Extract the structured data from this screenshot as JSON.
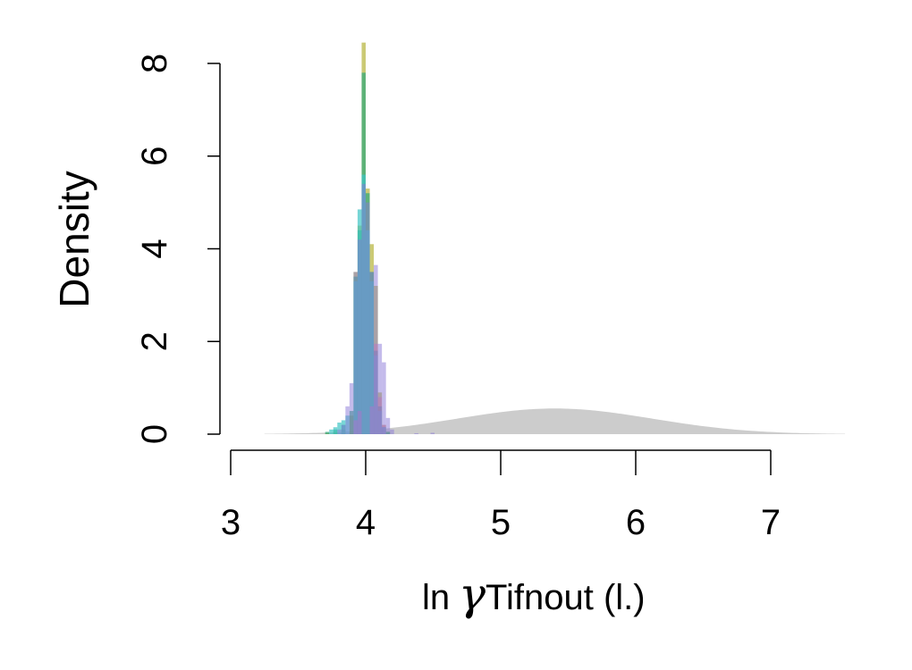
{
  "chart_data": {
    "type": "histogram",
    "title": "",
    "ylabel": "Density",
    "xlabel": {
      "prefix": "ln",
      "symbol": "γ",
      "subscript": "Tifnout (l.)"
    },
    "xlim": [
      3,
      7
    ],
    "ylim": [
      0,
      8
    ],
    "x_ticks": [
      3,
      4,
      5,
      6,
      7
    ],
    "y_ticks": [
      0,
      2,
      4,
      6,
      8
    ],
    "bin_width": 0.03,
    "prior": {
      "type": "area",
      "color": "#cccccc",
      "distribution": "normal",
      "mean": 5.4,
      "sd": 0.72,
      "x_range": [
        3.25,
        7.55
      ]
    },
    "series": [
      {
        "color": "#b5b33a",
        "opacity": 0.7,
        "bins": [
          [
            3.7,
            0.02
          ],
          [
            3.76,
            0.05
          ],
          [
            3.82,
            0.1
          ],
          [
            3.88,
            0.4
          ],
          [
            3.91,
            3.5
          ],
          [
            3.94,
            4.5
          ],
          [
            3.97,
            8.45
          ],
          [
            4.0,
            5.3
          ],
          [
            4.03,
            4.1
          ],
          [
            4.06,
            3.2
          ],
          [
            4.09,
            0.9
          ],
          [
            4.12,
            0.2
          ],
          [
            4.15,
            0.05
          ]
        ]
      },
      {
        "color": "#2ea879",
        "opacity": 0.7,
        "bins": [
          [
            3.7,
            0.05
          ],
          [
            3.76,
            0.1
          ],
          [
            3.82,
            0.2
          ],
          [
            3.88,
            0.5
          ],
          [
            3.91,
            3.4
          ],
          [
            3.94,
            4.4
          ],
          [
            3.97,
            7.8
          ],
          [
            4.0,
            5.2
          ],
          [
            4.03,
            3.5
          ],
          [
            4.06,
            1.8
          ],
          [
            4.09,
            0.6
          ],
          [
            4.12,
            0.15
          ],
          [
            4.15,
            0.05
          ]
        ]
      },
      {
        "color": "#3fc4c4",
        "opacity": 0.7,
        "bins": [
          [
            3.73,
            0.1
          ],
          [
            3.76,
            0.15
          ],
          [
            3.79,
            0.25
          ],
          [
            3.82,
            0.3
          ],
          [
            3.85,
            0.4
          ],
          [
            3.91,
            3.3
          ],
          [
            3.94,
            4.85
          ],
          [
            3.97,
            5.6
          ],
          [
            4.0,
            4.4
          ],
          [
            4.03,
            3.3
          ],
          [
            4.06,
            1.7
          ],
          [
            4.09,
            0.5
          ],
          [
            4.12,
            0.15
          ]
        ]
      },
      {
        "color": "#8a78d8",
        "opacity": 0.5,
        "bins": [
          [
            3.79,
            0.1
          ],
          [
            3.82,
            0.2
          ],
          [
            3.85,
            0.6
          ],
          [
            3.88,
            1.1
          ],
          [
            3.91,
            3.5
          ],
          [
            3.94,
            4.2
          ],
          [
            3.97,
            5.4
          ],
          [
            4.0,
            5.0
          ],
          [
            4.03,
            3.5
          ],
          [
            4.06,
            3.65
          ],
          [
            4.09,
            1.95
          ],
          [
            4.12,
            1.55
          ],
          [
            4.15,
            0.35
          ],
          [
            4.18,
            0.1
          ],
          [
            4.36,
            0.02
          ],
          [
            4.48,
            0.03
          ]
        ]
      },
      {
        "color": "#c06ad0",
        "opacity": 0.4,
        "bins": [
          [
            3.91,
            0.3
          ],
          [
            3.94,
            0.5
          ],
          [
            4.03,
            0.6
          ],
          [
            4.06,
            1.95
          ],
          [
            4.09,
            0.8
          ],
          [
            4.12,
            0.2
          ]
        ]
      }
    ]
  }
}
